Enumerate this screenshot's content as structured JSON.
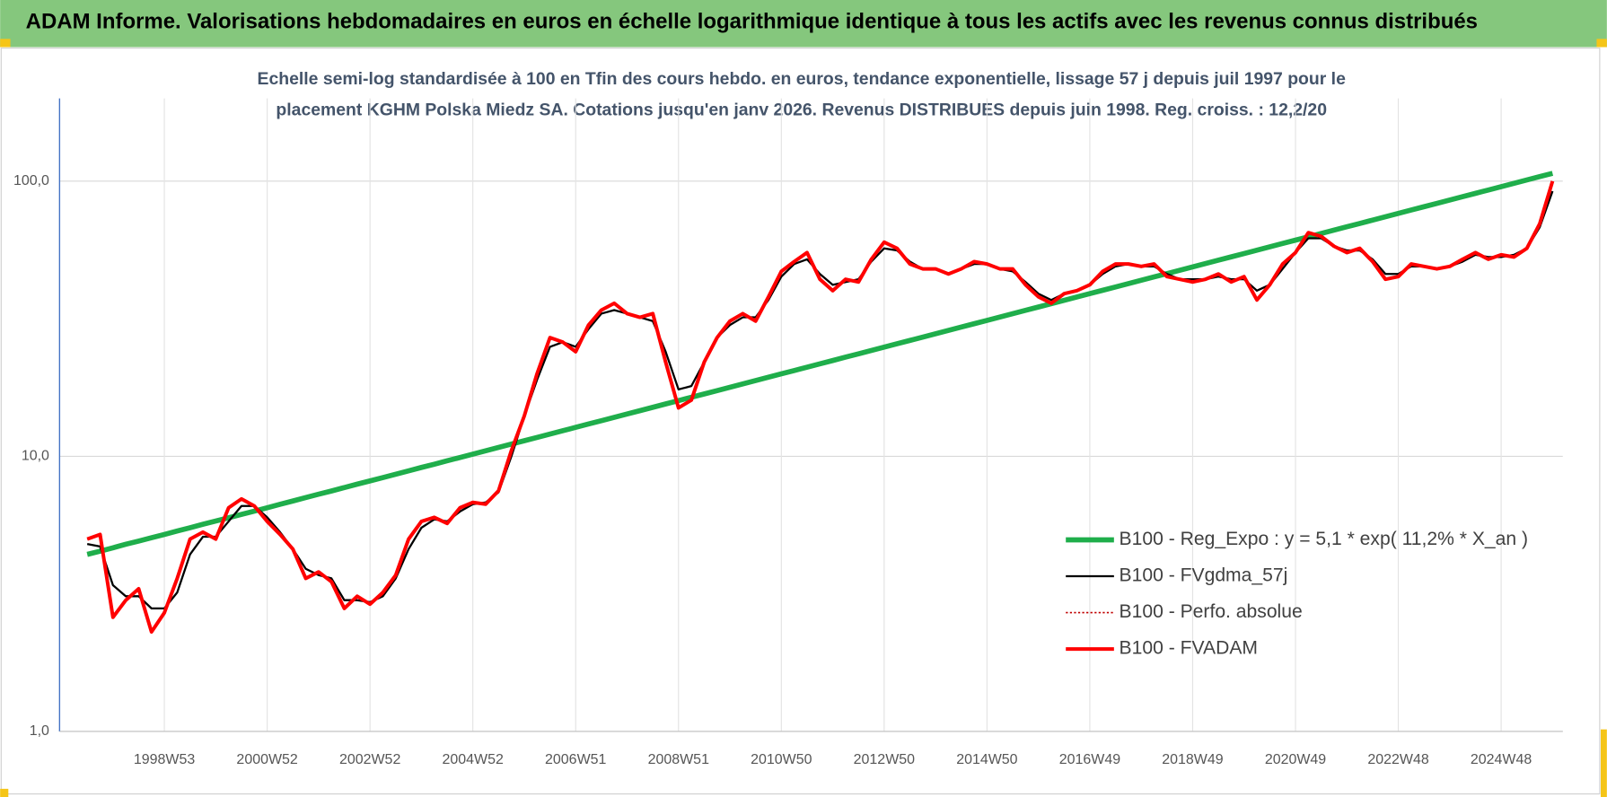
{
  "title": "ADAM Informe. Valorisations hebdomadaires en euros en échelle logarithmique identique à tous les actifs avec les revenus connus distribués",
  "chart_data": {
    "type": "line",
    "subtitle": [
      "Echelle semi-log standardisée à 100 en Tfin des cours hebdo. en euros, tendance exponentielle, lissage 57 j depuis juil 1997 pour le",
      "placement KGHM Polska Miedz SA. Cotations jusqu'en janv 2026. Revenus DISTRIBUES depuis juin 1998. Reg. croiss. : 12,2/20"
    ],
    "categories": [
      null,
      null,
      null,
      null,
      null,
      null,
      "1998W53",
      null,
      null,
      null,
      null,
      null,
      null,
      null,
      "2000W52",
      null,
      null,
      null,
      null,
      null,
      null,
      null,
      "2002W52",
      null,
      null,
      null,
      null,
      null,
      null,
      null,
      "2004W52",
      null,
      null,
      null,
      null,
      null,
      null,
      null,
      "2006W51",
      null,
      null,
      null,
      null,
      null,
      null,
      null,
      "2008W51",
      null,
      null,
      null,
      null,
      null,
      null,
      null,
      "2010W50",
      null,
      null,
      null,
      null,
      null,
      null,
      null,
      "2012W50",
      null,
      null,
      null,
      null,
      null,
      null,
      null,
      "2014W50",
      null,
      null,
      null,
      null,
      null,
      null,
      null,
      "2016W49",
      null,
      null,
      null,
      null,
      null,
      null,
      null,
      "2018W49",
      null,
      null,
      null,
      null,
      null,
      null,
      null,
      "2020W49",
      null,
      null,
      null,
      null,
      null,
      null,
      null,
      "2022W48",
      null,
      null,
      null,
      null,
      null,
      null,
      null,
      "2024W48",
      null,
      null,
      null,
      null
    ],
    "log_scale": true,
    "ylim": [
      1,
      200
    ],
    "yticks": [
      {
        "value": 1,
        "label": "1,0"
      },
      {
        "value": 10,
        "label": "10,0"
      },
      {
        "value": 100,
        "label": "100,0"
      }
    ],
    "grid": true,
    "legend_position": "lower right",
    "series": [
      {
        "name": "B100 - Reg_Expo : y = 5,1 * exp( 11,2% *  X_an )",
        "color": "#1fae4b",
        "line_width": 5,
        "line_style": "solid",
        "values": [
          4.4,
          4.52,
          4.65,
          4.79,
          4.92,
          5.06,
          5.2,
          5.35,
          5.5,
          5.66,
          5.82,
          5.98,
          6.15,
          6.32,
          6.5,
          6.69,
          6.88,
          7.08,
          7.28,
          7.48,
          7.7,
          7.92,
          8.14,
          8.37,
          8.61,
          8.85,
          9.11,
          9.36,
          9.63,
          9.9,
          10.18,
          10.47,
          10.77,
          11.08,
          11.39,
          11.71,
          12.05,
          12.39,
          12.74,
          13.11,
          13.47,
          13.85,
          14.25,
          14.65,
          15.07,
          15.5,
          15.94,
          16.39,
          16.85,
          17.33,
          17.82,
          18.33,
          18.85,
          19.39,
          19.94,
          20.5,
          21.08,
          21.68,
          22.29,
          22.93,
          23.58,
          24.25,
          24.94,
          25.65,
          26.37,
          27.12,
          27.89,
          28.68,
          29.49,
          30.33,
          31.19,
          32.07,
          32.98,
          33.92,
          34.88,
          35.87,
          36.89,
          37.94,
          39.02,
          40.12,
          41.26,
          42.43,
          43.64,
          44.88,
          46.14,
          47.45,
          48.8,
          50.18,
          51.61,
          53.08,
          54.58,
          56.13,
          57.72,
          59.36,
          61.05,
          62.78,
          64.55,
          66.38,
          68.27,
          70.2,
          72.2,
          74.25,
          76.36,
          78.53,
          80.75,
          83.04,
          85.4,
          87.83,
          90.31,
          92.87,
          95.51,
          98.22,
          101.0,
          103.9,
          106.8
        ]
      },
      {
        "name": "B100 - FVgdma_57j",
        "color": "#000000",
        "line_width": 2,
        "line_style": "solid",
        "values": [
          4.8,
          4.7,
          3.4,
          3.1,
          3.1,
          2.8,
          2.8,
          3.2,
          4.4,
          5.1,
          5.1,
          5.8,
          6.6,
          6.6,
          6.0,
          5.3,
          4.6,
          3.9,
          3.7,
          3.6,
          3.0,
          3.0,
          2.95,
          3.1,
          3.6,
          4.6,
          5.5,
          5.9,
          5.8,
          6.3,
          6.7,
          6.8,
          7.4,
          10,
          14,
          19,
          25,
          26,
          25,
          29,
          33,
          34,
          33,
          32,
          31,
          24,
          17.5,
          18,
          22,
          27,
          30,
          32,
          32,
          37,
          45,
          50,
          52,
          46,
          42,
          43,
          44,
          51,
          57,
          56,
          51,
          48,
          48,
          46,
          48,
          50,
          50,
          48,
          47,
          43,
          39,
          37,
          39,
          40,
          42,
          46,
          49,
          50,
          49,
          49,
          46,
          44,
          44,
          44,
          45,
          44,
          44,
          40,
          42,
          48,
          55,
          62,
          62,
          58,
          56,
          56,
          52,
          46,
          46,
          49,
          49,
          48,
          49,
          51,
          54,
          53,
          53,
          54,
          57,
          68,
          92
        ]
      },
      {
        "name": "B100 - Perfo. absolue",
        "color": "#c00000",
        "line_width": 1.5,
        "line_style": "dotted",
        "values": [
          5.0,
          5.2,
          2.6,
          3.0,
          3.3,
          2.3,
          2.7,
          3.6,
          5.0,
          5.3,
          5.0,
          6.5,
          7.0,
          6.6,
          5.8,
          5.2,
          4.6,
          3.6,
          3.8,
          3.5,
          2.8,
          3.1,
          2.9,
          3.2,
          3.7,
          5.0,
          5.8,
          6.0,
          5.7,
          6.5,
          6.8,
          6.7,
          7.5,
          10.5,
          14,
          20,
          27,
          26,
          24,
          30,
          34,
          36,
          33,
          32,
          33,
          22,
          15,
          16,
          22,
          27,
          31,
          33,
          31,
          38,
          47,
          51,
          55,
          44,
          40,
          44,
          43,
          52,
          60,
          57,
          50,
          48,
          48,
          46,
          48,
          51,
          50,
          48,
          48,
          42,
          38,
          36,
          39,
          40,
          42,
          47,
          50,
          50,
          49,
          50,
          45,
          44,
          43,
          44,
          46,
          43,
          45,
          37,
          42,
          50,
          55,
          65,
          63,
          58,
          55,
          57,
          51,
          44,
          45,
          50,
          49,
          48,
          49,
          52,
          55,
          52,
          54,
          53,
          57,
          70,
          100
        ]
      },
      {
        "name": "B100 - FVADAM",
        "color": "#ff0000",
        "line_width": 3.5,
        "line_style": "solid",
        "values": [
          5.0,
          5.2,
          2.6,
          3.0,
          3.3,
          2.3,
          2.7,
          3.6,
          5.0,
          5.3,
          5.0,
          6.5,
          7.0,
          6.6,
          5.8,
          5.2,
          4.6,
          3.6,
          3.8,
          3.5,
          2.8,
          3.1,
          2.9,
          3.2,
          3.7,
          5.0,
          5.8,
          6.0,
          5.7,
          6.5,
          6.8,
          6.7,
          7.5,
          10.5,
          14,
          20,
          27,
          26,
          24,
          30,
          34,
          36,
          33,
          32,
          33,
          22,
          15,
          16,
          22,
          27,
          31,
          33,
          31,
          38,
          47,
          51,
          55,
          44,
          40,
          44,
          43,
          52,
          60,
          57,
          50,
          48,
          48,
          46,
          48,
          51,
          50,
          48,
          48,
          42,
          38,
          36,
          39,
          40,
          42,
          47,
          50,
          50,
          49,
          50,
          45,
          44,
          43,
          44,
          46,
          43,
          45,
          37,
          42,
          50,
          55,
          65,
          63,
          58,
          55,
          57,
          51,
          44,
          45,
          50,
          49,
          48,
          49,
          52,
          55,
          52,
          54,
          53,
          57,
          70,
          100
        ]
      }
    ]
  }
}
